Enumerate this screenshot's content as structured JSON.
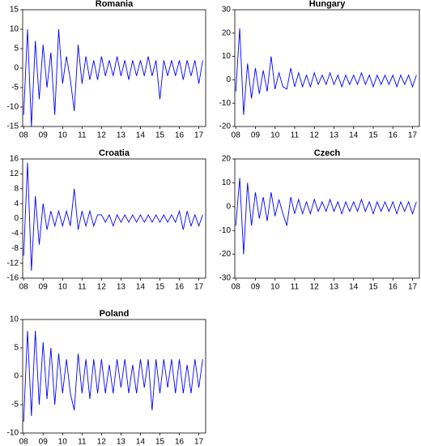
{
  "chart_data": [
    {
      "type": "line",
      "title": "Romania",
      "color": "#0000ff",
      "x": [
        2008,
        2008.2,
        2008.4,
        2008.6,
        2008.8,
        2009,
        2009.2,
        2009.4,
        2009.6,
        2009.8,
        2010,
        2010.2,
        2010.4,
        2010.6,
        2010.8,
        2011,
        2011.2,
        2011.4,
        2011.6,
        2011.8,
        2012,
        2012.2,
        2012.4,
        2012.6,
        2012.8,
        2013,
        2013.2,
        2013.4,
        2013.6,
        2013.8,
        2014,
        2014.2,
        2014.4,
        2014.6,
        2014.8,
        2015,
        2015.2,
        2015.4,
        2015.6,
        2015.8,
        2016,
        2016.2,
        2016.4,
        2016.6,
        2016.8,
        2017,
        2017.2
      ],
      "values": [
        -12,
        10,
        -15,
        7,
        -8,
        6,
        -5,
        4,
        -12,
        10,
        -4,
        3,
        -3,
        -11,
        6,
        -4,
        3,
        -3,
        2,
        -3,
        3,
        -2,
        2,
        -2,
        3,
        -2,
        2,
        -3,
        2,
        -2,
        2,
        -2,
        3,
        -2,
        2,
        -8,
        2,
        -2,
        2,
        -2,
        2,
        -3,
        2,
        -2,
        2,
        -4,
        2
      ],
      "xlim": [
        2007.95,
        2017.35
      ],
      "xticks": [
        {
          "value": 2008,
          "label": "08"
        },
        {
          "value": 2009,
          "label": "09"
        },
        {
          "value": 2010,
          "label": "10"
        },
        {
          "value": 2011,
          "label": "11"
        },
        {
          "value": 2012,
          "label": "12"
        },
        {
          "value": 2013,
          "label": "13"
        },
        {
          "value": 2014,
          "label": "14"
        },
        {
          "value": 2015,
          "label": "15"
        },
        {
          "value": 2016,
          "label": "16"
        },
        {
          "value": 2017,
          "label": "17"
        }
      ],
      "ylim": [
        -15,
        15
      ],
      "yticks": [
        -15,
        -10,
        -5,
        0,
        5,
        10,
        15
      ]
    },
    {
      "type": "line",
      "title": "Hungary",
      "color": "#0000ff",
      "x": [
        2008,
        2008.2,
        2008.4,
        2008.6,
        2008.8,
        2009,
        2009.2,
        2009.4,
        2009.6,
        2009.8,
        2010,
        2010.2,
        2010.4,
        2010.6,
        2010.8,
        2011,
        2011.2,
        2011.4,
        2011.6,
        2011.8,
        2012,
        2012.2,
        2012.4,
        2012.6,
        2012.8,
        2013,
        2013.2,
        2013.4,
        2013.6,
        2013.8,
        2014,
        2014.2,
        2014.4,
        2014.6,
        2014.8,
        2015,
        2015.2,
        2015.4,
        2015.6,
        2015.8,
        2016,
        2016.2,
        2016.4,
        2016.6,
        2016.8,
        2017,
        2017.2
      ],
      "values": [
        -5,
        22,
        -15,
        7,
        -8,
        5,
        -6,
        4,
        -5,
        10,
        -4,
        3,
        -3,
        -4,
        5,
        -3,
        3,
        -3,
        2,
        -3,
        3,
        -2,
        2,
        -2,
        3,
        -2,
        2,
        -3,
        2,
        -2,
        2,
        -2,
        3,
        -2,
        2,
        -3,
        2,
        -2,
        2,
        -2,
        2,
        -3,
        2,
        -2,
        2,
        -3,
        2
      ],
      "xlim": [
        2007.95,
        2017.35
      ],
      "xticks": [
        {
          "value": 2008,
          "label": "08"
        },
        {
          "value": 2009,
          "label": "09"
        },
        {
          "value": 2010,
          "label": "10"
        },
        {
          "value": 2011,
          "label": "11"
        },
        {
          "value": 2012,
          "label": "12"
        },
        {
          "value": 2013,
          "label": "13"
        },
        {
          "value": 2014,
          "label": "14"
        },
        {
          "value": 2015,
          "label": "15"
        },
        {
          "value": 2016,
          "label": "16"
        },
        {
          "value": 2017,
          "label": "17"
        }
      ],
      "ylim": [
        -20,
        30
      ],
      "yticks": [
        -20,
        -10,
        0,
        10,
        20,
        30
      ]
    },
    {
      "type": "line",
      "title": "Croatia",
      "color": "#0000ff",
      "x": [
        2008,
        2008.2,
        2008.4,
        2008.6,
        2008.8,
        2009,
        2009.2,
        2009.4,
        2009.6,
        2009.8,
        2010,
        2010.2,
        2010.4,
        2010.6,
        2010.8,
        2011,
        2011.2,
        2011.4,
        2011.6,
        2011.8,
        2012,
        2012.2,
        2012.4,
        2012.6,
        2012.8,
        2013,
        2013.2,
        2013.4,
        2013.6,
        2013.8,
        2014,
        2014.2,
        2014.4,
        2014.6,
        2014.8,
        2015,
        2015.2,
        2015.4,
        2015.6,
        2015.8,
        2016,
        2016.2,
        2016.4,
        2016.6,
        2016.8,
        2017,
        2017.2
      ],
      "values": [
        -10,
        15,
        -14,
        6,
        -7,
        4,
        -3,
        2,
        -2,
        2,
        -2,
        2,
        -2,
        8,
        -3,
        2,
        -2,
        2,
        -2,
        1,
        1,
        -1,
        1,
        -2,
        1,
        -1,
        1,
        -1,
        1,
        -1,
        1,
        -1,
        1,
        -1,
        1,
        -1,
        1,
        -1,
        1,
        -1,
        2,
        -3,
        2,
        -2,
        1,
        -2,
        1
      ],
      "xlim": [
        2007.95,
        2017.35
      ],
      "xticks": [
        {
          "value": 2008,
          "label": "08"
        },
        {
          "value": 2009,
          "label": "09"
        },
        {
          "value": 2010,
          "label": "10"
        },
        {
          "value": 2011,
          "label": "11"
        },
        {
          "value": 2012,
          "label": "12"
        },
        {
          "value": 2013,
          "label": "13"
        },
        {
          "value": 2014,
          "label": "14"
        },
        {
          "value": 2015,
          "label": "15"
        },
        {
          "value": 2016,
          "label": "16"
        },
        {
          "value": 2017,
          "label": "17"
        }
      ],
      "ylim": [
        -16,
        16
      ],
      "yticks": [
        -16,
        -12,
        -8,
        -4,
        0,
        4,
        8,
        12,
        16
      ]
    },
    {
      "type": "line",
      "title": "Czech",
      "color": "#0000ff",
      "x": [
        2008,
        2008.2,
        2008.4,
        2008.6,
        2008.8,
        2009,
        2009.2,
        2009.4,
        2009.6,
        2009.8,
        2010,
        2010.2,
        2010.4,
        2010.6,
        2010.8,
        2011,
        2011.2,
        2011.4,
        2011.6,
        2011.8,
        2012,
        2012.2,
        2012.4,
        2012.6,
        2012.8,
        2013,
        2013.2,
        2013.4,
        2013.6,
        2013.8,
        2014,
        2014.2,
        2014.4,
        2014.6,
        2014.8,
        2015,
        2015.2,
        2015.4,
        2015.6,
        2015.8,
        2016,
        2016.2,
        2016.4,
        2016.6,
        2016.8,
        2017,
        2017.2
      ],
      "values": [
        -8,
        12,
        -20,
        10,
        -8,
        6,
        -5,
        4,
        -6,
        6,
        -4,
        3,
        -3,
        -8,
        4,
        -3,
        3,
        -3,
        2,
        -3,
        3,
        -2,
        2,
        -2,
        3,
        -2,
        2,
        -3,
        2,
        -2,
        2,
        -2,
        3,
        -2,
        2,
        -3,
        2,
        -2,
        2,
        -2,
        2,
        -3,
        2,
        -2,
        2,
        -3,
        2
      ],
      "xlim": [
        2007.95,
        2017.35
      ],
      "xticks": [
        {
          "value": 2008,
          "label": "08"
        },
        {
          "value": 2009,
          "label": "09"
        },
        {
          "value": 2010,
          "label": "10"
        },
        {
          "value": 2011,
          "label": "11"
        },
        {
          "value": 2012,
          "label": "12"
        },
        {
          "value": 2013,
          "label": "13"
        },
        {
          "value": 2014,
          "label": "14"
        },
        {
          "value": 2015,
          "label": "15"
        },
        {
          "value": 2016,
          "label": "16"
        },
        {
          "value": 2017,
          "label": "17"
        }
      ],
      "ylim": [
        -30,
        20
      ],
      "yticks": [
        -30,
        -20,
        -10,
        0,
        10,
        20
      ]
    },
    {
      "type": "line",
      "title": "Poland",
      "color": "#0000ff",
      "x": [
        2008,
        2008.2,
        2008.4,
        2008.6,
        2008.8,
        2009,
        2009.2,
        2009.4,
        2009.6,
        2009.8,
        2010,
        2010.2,
        2010.4,
        2010.6,
        2010.8,
        2011,
        2011.2,
        2011.4,
        2011.6,
        2011.8,
        2012,
        2012.2,
        2012.4,
        2012.6,
        2012.8,
        2013,
        2013.2,
        2013.4,
        2013.6,
        2013.8,
        2014,
        2014.2,
        2014.4,
        2014.6,
        2014.8,
        2015,
        2015.2,
        2015.4,
        2015.6,
        2015.8,
        2016,
        2016.2,
        2016.4,
        2016.6,
        2016.8,
        2017,
        2017.2
      ],
      "values": [
        -8,
        8,
        -7,
        8,
        -5,
        6,
        -4,
        5,
        -5,
        4,
        -3,
        3,
        -3,
        -6,
        4,
        -3,
        3,
        -4,
        3,
        -3,
        3,
        -3,
        2,
        -3,
        3,
        -2,
        3,
        -3,
        2,
        -3,
        3,
        -2,
        3,
        -6,
        3,
        -3,
        3,
        -2,
        3,
        -3,
        3,
        -3,
        2,
        -3,
        3,
        -2,
        3
      ],
      "xlim": [
        2007.95,
        2017.35
      ],
      "xticks": [
        {
          "value": 2008,
          "label": "08"
        },
        {
          "value": 2009,
          "label": "09"
        },
        {
          "value": 2010,
          "label": "10"
        },
        {
          "value": 2011,
          "label": "11"
        },
        {
          "value": 2012,
          "label": "12"
        },
        {
          "value": 2013,
          "label": "13"
        },
        {
          "value": 2014,
          "label": "14"
        },
        {
          "value": 2015,
          "label": "15"
        },
        {
          "value": 2016,
          "label": "16"
        },
        {
          "value": 2017,
          "label": "17"
        }
      ],
      "ylim": [
        -10,
        10
      ],
      "yticks": [
        -10,
        -5,
        0,
        5,
        10
      ]
    }
  ]
}
